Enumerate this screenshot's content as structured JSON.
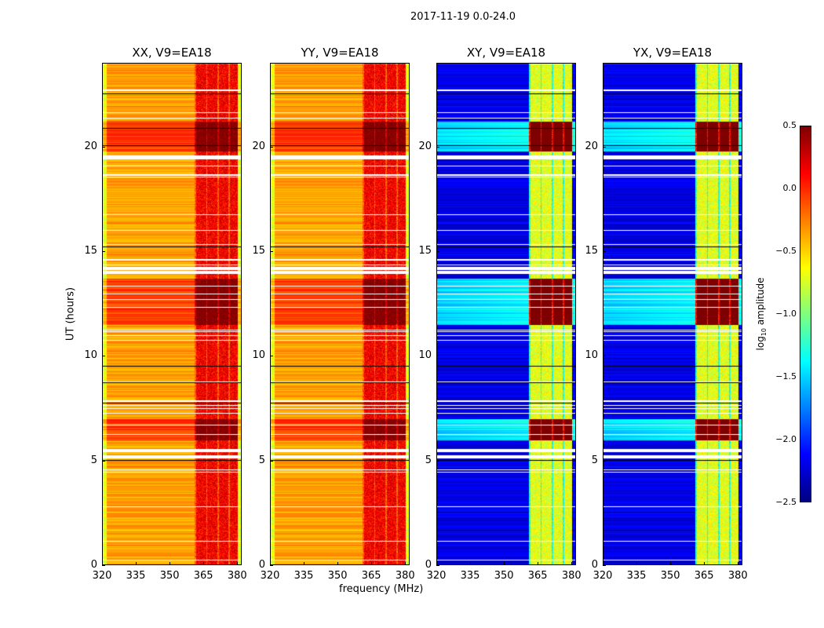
{
  "chart_data": {
    "type": "heatmap",
    "title": "2017-11-19 0.0-24.0",
    "xlabel": "frequency (MHz)",
    "ylabel": "UT (hours)",
    "xlim": [
      320,
      382
    ],
    "ylim": [
      0,
      24
    ],
    "xticks": [
      320,
      335,
      350,
      365,
      380
    ],
    "yticks": [
      0,
      5,
      10,
      15,
      20
    ],
    "colormap": "jet",
    "colorbar": {
      "label": "log10 amplitude",
      "label_base": "log",
      "label_sub": "10",
      "label_rest": " amplitude",
      "range": [
        -2.5,
        0.5
      ],
      "ticks": [
        "0.5",
        "0.0",
        "−0.5",
        "−1.0",
        "−1.5",
        "−2.0",
        "−2.5"
      ],
      "tick_values": [
        0.5,
        0.0,
        -0.5,
        -1.0,
        -1.5,
        -2.0,
        -2.5
      ]
    },
    "panels": [
      {
        "title": "XX, V9=EA18",
        "polarization": "XX",
        "baseline": "V9=EA18",
        "base_level": -0.35,
        "band_level": 0.15
      },
      {
        "title": "YY, V9=EA18",
        "polarization": "YY",
        "baseline": "V9=EA18",
        "base_level": -0.35,
        "band_level": 0.15
      },
      {
        "title": "XY, V9=EA18",
        "polarization": "XY",
        "baseline": "V9=EA18",
        "base_level": -2.2,
        "band_level": -0.7
      },
      {
        "title": "YX, V9=EA18",
        "polarization": "YX",
        "baseline": "V9=EA18",
        "base_level": -2.2,
        "band_level": -0.7
      }
    ],
    "rfi_band_mhz": [
      361,
      380
    ],
    "flagged_ut_hours": [
      5.2,
      5.5,
      14.0,
      14.2,
      19.5
    ],
    "strong_ut_ranges": [
      [
        6.0,
        7.0
      ],
      [
        11.5,
        13.7
      ],
      [
        19.8,
        21.2
      ]
    ]
  },
  "labels": {
    "ylabel": "UT (hours)",
    "xlabel": "frequency (MHz)"
  }
}
